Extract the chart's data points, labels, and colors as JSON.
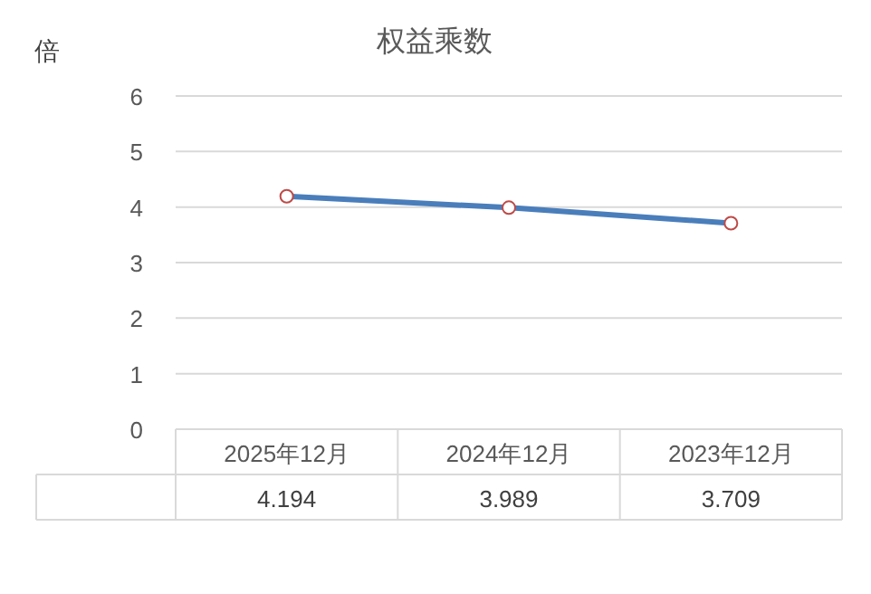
{
  "chart_data": {
    "type": "line",
    "title": "权益乘数",
    "ylabel": "倍",
    "categories": [
      "2025年12月",
      "2024年12月",
      "2023年12月"
    ],
    "series": [
      {
        "color": "#4a7ebb",
        "values": [
          4.194,
          3.989,
          3.709
        ]
      }
    ],
    "ylim": [
      0,
      6
    ],
    "yticks": [
      0,
      1,
      2,
      3,
      4,
      5,
      6
    ],
    "grid": "y",
    "marker": "circle",
    "line_style": "solid",
    "data_labels": true
  }
}
